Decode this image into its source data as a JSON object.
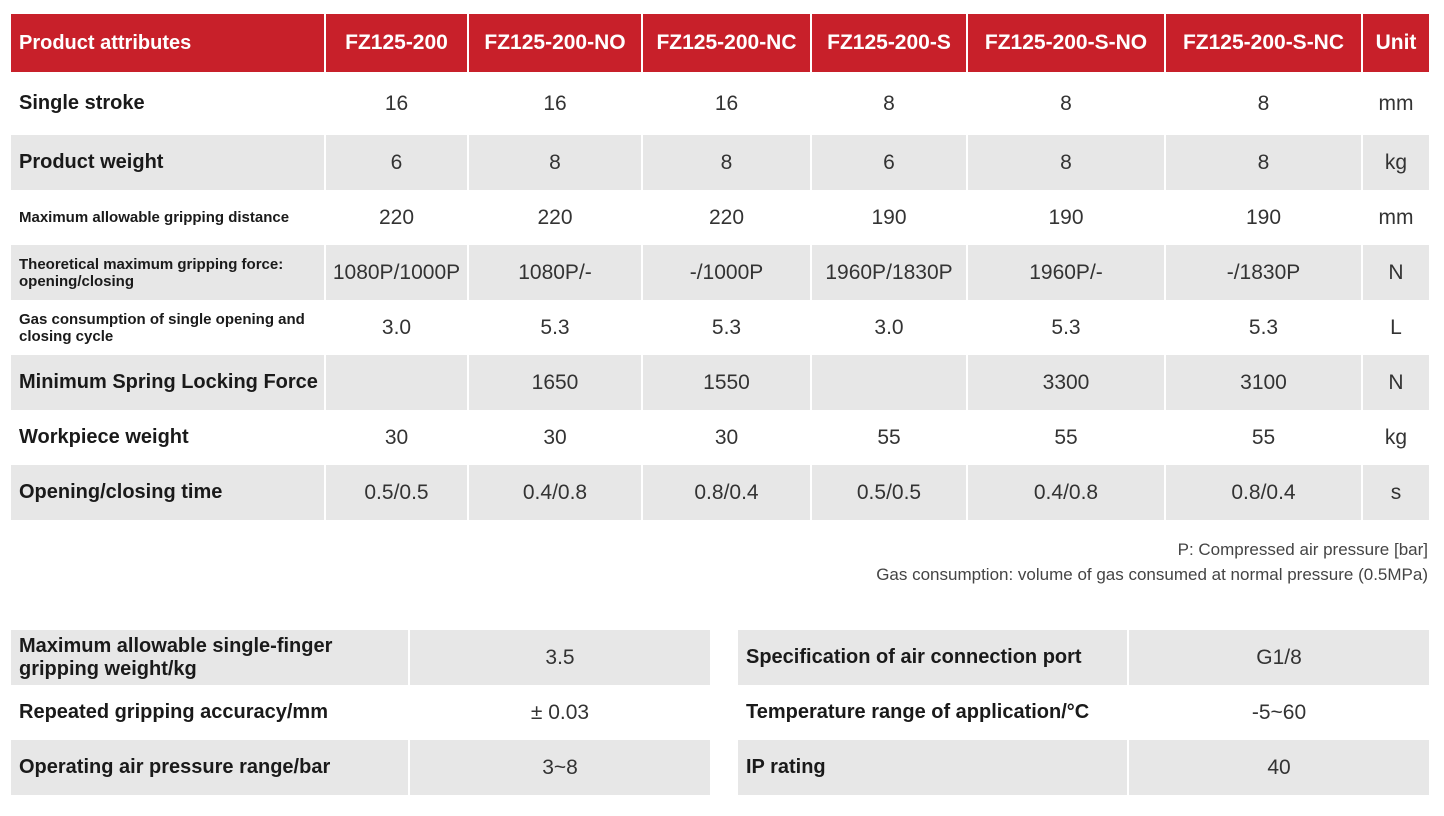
{
  "spec_table": {
    "headers": [
      "Product attributes",
      "FZ125-200",
      "FZ125-200-NO",
      "FZ125-200-NC",
      "FZ125-200-S",
      "FZ125-200-S-NO",
      "FZ125-200-S-NC",
      "Unit"
    ],
    "rows": [
      {
        "label": "Single stroke",
        "values": [
          "16",
          "16",
          "16",
          "8",
          "8",
          "8"
        ],
        "unit": "mm"
      },
      {
        "label": "Product weight",
        "values": [
          "6",
          "8",
          "8",
          "6",
          "8",
          "8"
        ],
        "unit": "kg"
      },
      {
        "label": "Maximum allowable gripping distance",
        "values": [
          "220",
          "220",
          "220",
          "190",
          "190",
          "190"
        ],
        "unit": "mm"
      },
      {
        "label": "Theoretical maximum gripping force: opening/closing",
        "values": [
          "1080P/1000P",
          "1080P/-",
          "-/1000P",
          "1960P/1830P",
          "1960P/-",
          "-/1830P"
        ],
        "unit": "N"
      },
      {
        "label": "Gas consumption of single opening and closing cycle",
        "values": [
          "3.0",
          "5.3",
          "5.3",
          "3.0",
          "5.3",
          "5.3"
        ],
        "unit": "L"
      },
      {
        "label": "Minimum Spring Locking Force",
        "values": [
          "",
          "1650",
          "1550",
          "",
          "3300",
          "3100"
        ],
        "unit": "N"
      },
      {
        "label": "Workpiece weight",
        "values": [
          "30",
          "30",
          "30",
          "55",
          "55",
          "55"
        ],
        "unit": "kg"
      },
      {
        "label": "Opening/closing time",
        "values": [
          "0.5/0.5",
          "0.4/0.8",
          "0.8/0.4",
          "0.5/0.5",
          "0.4/0.8",
          "0.8/0.4"
        ],
        "unit": "s"
      }
    ]
  },
  "notes": {
    "line1": "P: Compressed air pressure [bar]",
    "line2": "Gas consumption: volume of gas consumed at normal pressure (0.5MPa)"
  },
  "left_table": [
    {
      "label": "Maximum allowable single-finger gripping weight/kg",
      "value": "3.5"
    },
    {
      "label": "Repeated gripping accuracy/mm",
      "value": "± 0.03"
    },
    {
      "label": "Operating air pressure range/bar",
      "value": "3~8"
    }
  ],
  "right_table": [
    {
      "label": "Specification of air connection port",
      "value": "G1/8"
    },
    {
      "label": "Temperature range of application/°C",
      "value": "-5~60"
    },
    {
      "label": "IP rating",
      "value": "40"
    }
  ],
  "colors": {
    "header_bg": "#c8202a",
    "stripe": "#e7e7e7"
  }
}
